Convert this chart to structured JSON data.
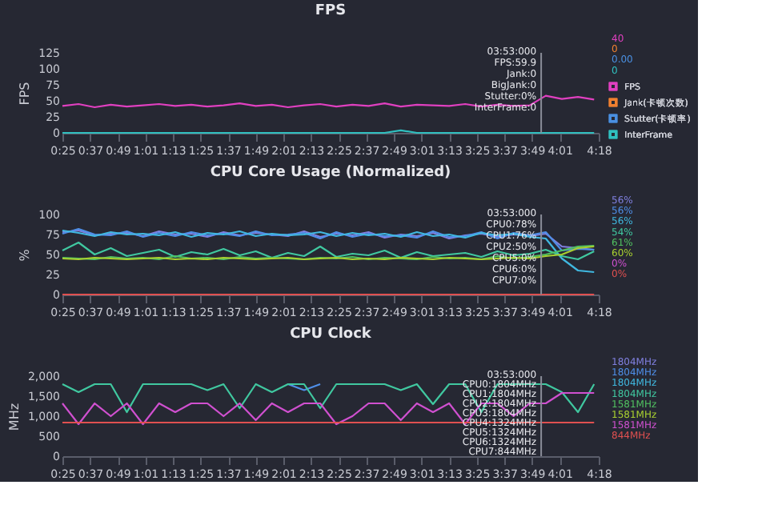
{
  "chart_data": [
    {
      "type": "line",
      "title": "FPS",
      "ylabel": "FPS",
      "legend": "right",
      "grid": false,
      "marker": "none",
      "line_style": "solid",
      "x": [
        25,
        32,
        39,
        46,
        53,
        60,
        67,
        74,
        81,
        88,
        95,
        102,
        109,
        116,
        123,
        130,
        137,
        144,
        151,
        158,
        165,
        172,
        179,
        186,
        193,
        200,
        207,
        214,
        221,
        228,
        235,
        242,
        249,
        256
      ],
      "xlim": [
        25,
        258
      ],
      "ylim": [
        0,
        125
      ],
      "yticks": [
        0,
        25,
        50,
        75,
        100,
        125
      ],
      "xticks": [
        {
          "value": 25,
          "label": "0:25"
        },
        {
          "value": 37,
          "label": "0:37"
        },
        {
          "value": 49,
          "label": "0:49"
        },
        {
          "value": 61,
          "label": "1:01"
        },
        {
          "value": 73,
          "label": "1:13"
        },
        {
          "value": 85,
          "label": "1:25"
        },
        {
          "value": 97,
          "label": "1:37"
        },
        {
          "value": 109,
          "label": "1:49"
        },
        {
          "value": 121,
          "label": "2:01"
        },
        {
          "value": 133,
          "label": "2:13"
        },
        {
          "value": 145,
          "label": "2:25"
        },
        {
          "value": 157,
          "label": "2:37"
        },
        {
          "value": 169,
          "label": "2:49"
        },
        {
          "value": 181,
          "label": "3:01"
        },
        {
          "value": 193,
          "label": "3:13"
        },
        {
          "value": 205,
          "label": "3:25"
        },
        {
          "value": 217,
          "label": "3:37"
        },
        {
          "value": 229,
          "label": "3:49"
        },
        {
          "value": 241,
          "label": "4:01"
        },
        {
          "value": 258,
          "label": "4:18"
        }
      ],
      "series": [
        {
          "name": "FPS",
          "color": "#e040c0",
          "values": [
            42,
            45,
            40,
            44,
            41,
            43,
            45,
            42,
            44,
            41,
            43,
            46,
            42,
            44,
            40,
            43,
            45,
            41,
            44,
            42,
            46,
            41,
            44,
            43,
            42,
            45,
            41,
            44,
            42,
            43,
            58,
            53,
            56,
            52
          ]
        },
        {
          "name": "Jank(卡顿次数)",
          "color": "#f08030",
          "values": [
            null,
            null,
            null,
            null,
            null,
            null,
            null,
            null,
            null,
            null,
            null,
            null,
            null,
            null,
            null,
            null,
            null,
            null,
            null,
            null,
            null,
            null,
            null,
            null,
            null,
            null,
            null,
            null,
            null,
            null,
            null,
            null,
            null,
            null
          ]
        },
        {
          "name": "Stutter(卡顿率)",
          "color": "#4a90e2",
          "values": [
            null,
            null,
            null,
            null,
            null,
            null,
            null,
            null,
            null,
            null,
            null,
            null,
            null,
            null,
            null,
            null,
            null,
            null,
            null,
            null,
            null,
            null,
            null,
            null,
            null,
            null,
            null,
            null,
            null,
            null,
            null,
            null,
            null,
            null
          ]
        },
        {
          "name": "InterFrame",
          "color": "#30c0c0",
          "values": [
            0,
            0,
            0,
            0,
            0,
            0,
            0,
            0,
            0,
            0,
            0,
            0,
            0,
            0,
            0,
            0,
            0,
            0,
            0,
            0,
            0,
            4,
            0,
            0,
            0,
            0,
            0,
            0,
            0,
            0,
            0,
            0,
            0,
            0
          ]
        }
      ],
      "ref_lines": [
        {
          "axis": "x",
          "value": 233,
          "color": "#8a8d99"
        }
      ],
      "annotations": [
        "03:53:000",
        "FPS:59.9",
        "Jank:0",
        "BigJank:0",
        "Stutter:0%",
        "InterFrame:0",
        "40",
        "0",
        "0.00",
        "0"
      ]
    },
    {
      "type": "line",
      "title": "CPU Core Usage (Normalized)",
      "ylabel": "%",
      "legend": false,
      "grid": false,
      "marker": "none",
      "line_style": "solid",
      "x": [
        25,
        32,
        39,
        46,
        53,
        60,
        67,
        74,
        81,
        88,
        95,
        102,
        109,
        116,
        123,
        130,
        137,
        144,
        151,
        158,
        165,
        172,
        179,
        186,
        193,
        200,
        207,
        214,
        221,
        228,
        235,
        242,
        249,
        256
      ],
      "xlim": [
        25,
        258
      ],
      "ylim": [
        0,
        100
      ],
      "yticks": [
        0,
        25,
        50,
        75,
        100
      ],
      "xticks": [
        {
          "value": 25,
          "label": "0:25"
        },
        {
          "value": 37,
          "label": "0:37"
        },
        {
          "value": 49,
          "label": "0:49"
        },
        {
          "value": 61,
          "label": "1:01"
        },
        {
          "value": 73,
          "label": "1:13"
        },
        {
          "value": 85,
          "label": "1:25"
        },
        {
          "value": 97,
          "label": "1:37"
        },
        {
          "value": 109,
          "label": "1:49"
        },
        {
          "value": 121,
          "label": "2:01"
        },
        {
          "value": 133,
          "label": "2:13"
        },
        {
          "value": 145,
          "label": "2:25"
        },
        {
          "value": 157,
          "label": "2:37"
        },
        {
          "value": 169,
          "label": "2:49"
        },
        {
          "value": 181,
          "label": "3:01"
        },
        {
          "value": 193,
          "label": "3:13"
        },
        {
          "value": 205,
          "label": "3:25"
        },
        {
          "value": 217,
          "label": "3:37"
        },
        {
          "value": 229,
          "label": "3:49"
        },
        {
          "value": 241,
          "label": "4:01"
        },
        {
          "value": 258,
          "label": "4:18"
        }
      ],
      "series": [
        {
          "color": "#8080e0",
          "values": [
            78,
            80,
            74,
            76,
            77,
            73,
            79,
            75,
            76,
            72,
            78,
            74,
            77,
            75,
            73,
            79,
            72,
            76,
            74,
            78,
            71,
            75,
            73,
            77,
            70,
            74,
            76,
            72,
            75,
            73,
            76,
            60,
            58,
            56
          ]
        },
        {
          "color": "#4f8fe8",
          "values": [
            76,
            82,
            75,
            74,
            79,
            72,
            77,
            73,
            78,
            74,
            76,
            73,
            79,
            74,
            75,
            77,
            70,
            78,
            72,
            76,
            73,
            74,
            71,
            79,
            72,
            73,
            78,
            70,
            77,
            74,
            78,
            55,
            57,
            56
          ]
        },
        {
          "color": "#40b8e0",
          "values": [
            80,
            77,
            73,
            78,
            75,
            76,
            74,
            78,
            72,
            77,
            75,
            79,
            73,
            76,
            74,
            75,
            78,
            73,
            77,
            74,
            76,
            72,
            78,
            73,
            75,
            71,
            77,
            74,
            76,
            72,
            70,
            45,
            30,
            28
          ]
        },
        {
          "color": "#40c8a0",
          "values": [
            55,
            65,
            50,
            58,
            48,
            52,
            56,
            47,
            53,
            50,
            57,
            49,
            54,
            46,
            52,
            48,
            60,
            47,
            51,
            49,
            55,
            46,
            53,
            48,
            50,
            52,
            47,
            54,
            49,
            51,
            56,
            48,
            44,
            54
          ]
        },
        {
          "color": "#50c060",
          "values": [
            46,
            45,
            44,
            47,
            45,
            46,
            44,
            48,
            45,
            46,
            44,
            47,
            45,
            46,
            45,
            44,
            46,
            45,
            47,
            44,
            46,
            45,
            44,
            47,
            45,
            46,
            44,
            48,
            45,
            47,
            50,
            55,
            60,
            61
          ]
        },
        {
          "color": "#a8d030",
          "values": [
            45,
            44,
            46,
            45,
            44,
            45,
            46,
            44,
            45,
            44,
            46,
            45,
            44,
            45,
            46,
            44,
            45,
            46,
            44,
            45,
            44,
            46,
            45,
            44,
            46,
            45,
            44,
            45,
            46,
            45,
            48,
            50,
            58,
            60
          ]
        },
        {
          "color": "#d050d0",
          "values": [
            null,
            null,
            null,
            null,
            null,
            null,
            null,
            null,
            null,
            null,
            null,
            null,
            null,
            null,
            null,
            null,
            null,
            null,
            null,
            null,
            null,
            null,
            null,
            null,
            null,
            null,
            null,
            null,
            null,
            null,
            null,
            null,
            null,
            null
          ]
        },
        {
          "color": "#e05050",
          "values": [
            0,
            0,
            0,
            0,
            0,
            0,
            0,
            0,
            0,
            0,
            0,
            0,
            0,
            0,
            0,
            0,
            0,
            0,
            0,
            0,
            0,
            0,
            0,
            0,
            0,
            0,
            0,
            0,
            0,
            0,
            0,
            0,
            0,
            0
          ]
        }
      ],
      "ref_lines": [
        {
          "axis": "x",
          "value": 233,
          "color": "#8a8d99"
        }
      ],
      "annotations": [
        "03:53:000",
        "CPU0:78%",
        "CPU1:76%",
        "CPU2:50%",
        "CPU5:0%",
        "CPU6:0%",
        "CPU7:0%",
        "56%",
        "56%",
        "56%",
        "54%",
        "61%",
        "60%",
        "0%",
        "0%"
      ]
    },
    {
      "type": "line",
      "title": "CPU Clock",
      "ylabel": "MHz",
      "legend": false,
      "grid": false,
      "marker": "none",
      "line_style": "solid",
      "x": [
        25,
        32,
        39,
        46,
        53,
        60,
        67,
        74,
        81,
        88,
        95,
        102,
        109,
        116,
        123,
        130,
        137,
        144,
        151,
        158,
        165,
        172,
        179,
        186,
        193,
        200,
        207,
        214,
        221,
        228,
        235,
        242,
        249,
        256
      ],
      "xlim": [
        25,
        258
      ],
      "ylim": [
        0,
        2000
      ],
      "yticks": [
        {
          "value": 0,
          "label": "0"
        },
        {
          "value": 500,
          "label": "500"
        },
        {
          "value": 1000,
          "label": "1,000"
        },
        {
          "value": 1500,
          "label": "1,500"
        },
        {
          "value": 2000,
          "label": "2,000"
        }
      ],
      "xticks": [
        {
          "value": 25,
          "label": "0:25"
        },
        {
          "value": 37,
          "label": "0:37"
        },
        {
          "value": 49,
          "label": "0:49"
        },
        {
          "value": 61,
          "label": "1:01"
        },
        {
          "value": 73,
          "label": "1:13"
        },
        {
          "value": 85,
          "label": "1:25"
        },
        {
          "value": 97,
          "label": "1:37"
        },
        {
          "value": 109,
          "label": "1:49"
        },
        {
          "value": 121,
          "label": "2:01"
        },
        {
          "value": 133,
          "label": "2:13"
        },
        {
          "value": 145,
          "label": "2:25"
        },
        {
          "value": 157,
          "label": "2:37"
        },
        {
          "value": 169,
          "label": "2:49"
        },
        {
          "value": 181,
          "label": "3:01"
        },
        {
          "value": 193,
          "label": "3:13"
        },
        {
          "value": 205,
          "label": "3:25"
        },
        {
          "value": 217,
          "label": "3:37"
        },
        {
          "value": 229,
          "label": "3:49"
        },
        {
          "value": 241,
          "label": "4:01"
        },
        {
          "value": 258,
          "label": "4:18"
        }
      ],
      "series": [
        {
          "color": "#8080e0",
          "values": [
            null,
            null,
            null,
            null,
            null,
            null,
            null,
            null,
            null,
            null,
            null,
            null,
            null,
            null,
            null,
            null,
            null,
            null,
            null,
            null,
            null,
            null,
            null,
            null,
            null,
            null,
            null,
            null,
            null,
            null,
            null,
            null,
            null,
            null
          ]
        },
        {
          "color": "#4f8fe8",
          "values": [
            null,
            null,
            null,
            null,
            null,
            null,
            null,
            null,
            null,
            null,
            null,
            null,
            null,
            null,
            1800,
            1650,
            1800,
            null,
            null,
            null,
            null,
            null,
            null,
            null,
            null,
            null,
            null,
            null,
            null,
            null,
            null,
            null,
            null,
            null
          ]
        },
        {
          "color": "#40b8e0",
          "values": [
            null,
            null,
            null,
            null,
            null,
            null,
            null,
            null,
            null,
            null,
            null,
            null,
            null,
            null,
            null,
            null,
            null,
            null,
            null,
            null,
            null,
            null,
            null,
            null,
            null,
            null,
            null,
            null,
            null,
            null,
            null,
            null,
            null,
            null
          ]
        },
        {
          "color": "#40c8a0",
          "values": [
            1800,
            1600,
            1800,
            1800,
            1100,
            1800,
            1800,
            1800,
            1800,
            1650,
            1800,
            1200,
            1800,
            1600,
            1800,
            1800,
            1200,
            1800,
            1800,
            1800,
            1800,
            1650,
            1800,
            1300,
            1800,
            1800,
            1100,
            1800,
            1800,
            1800,
            1800,
            1600,
            1100,
            1800
          ]
        },
        {
          "color": "#50c060",
          "values": [
            null,
            null,
            null,
            null,
            null,
            null,
            null,
            null,
            null,
            null,
            null,
            null,
            null,
            null,
            null,
            null,
            null,
            null,
            null,
            null,
            null,
            null,
            null,
            null,
            null,
            null,
            null,
            null,
            null,
            null,
            null,
            null,
            null,
            null
          ]
        },
        {
          "color": "#a8d030",
          "values": [
            null,
            null,
            null,
            null,
            null,
            null,
            null,
            null,
            null,
            null,
            null,
            null,
            null,
            null,
            null,
            null,
            null,
            null,
            null,
            null,
            null,
            null,
            null,
            null,
            null,
            null,
            null,
            null,
            null,
            null,
            null,
            null,
            null,
            null
          ]
        },
        {
          "color": "#d050d0",
          "values": [
            1320,
            800,
            1320,
            1000,
            1320,
            800,
            1320,
            1100,
            1320,
            1320,
            1000,
            1320,
            900,
            1320,
            1100,
            1320,
            1320,
            800,
            1000,
            1320,
            1320,
            900,
            1320,
            1100,
            1320,
            800,
            1320,
            1320,
            1000,
            1320,
            1320,
            1580,
            1580,
            1580
          ]
        },
        {
          "color": "#e05050",
          "values": [
            840,
            840,
            840,
            840,
            840,
            840,
            840,
            840,
            840,
            840,
            840,
            840,
            840,
            840,
            840,
            840,
            840,
            840,
            840,
            840,
            840,
            840,
            840,
            840,
            840,
            840,
            840,
            840,
            840,
            840,
            840,
            840,
            840,
            840
          ]
        }
      ],
      "ref_lines": [
        {
          "axis": "x",
          "value": 233,
          "color": "#8a8d99"
        }
      ],
      "annotations": [
        "03:53:000",
        "CPU0:1804MHz",
        "CPU1:1804MHz",
        "CPU2:1804MHz",
        "CPU3:1804MHz",
        "CPU4:1324MHz",
        "CPU5:1324MHz",
        "CPU6:1324MHz",
        "CPU7:844MHz",
        "1804MHz",
        "1804MHz",
        "1804MHz",
        "1804MHz",
        "1581MHz",
        "1581MHz",
        "1581MHz",
        "844MHz"
      ]
    }
  ]
}
